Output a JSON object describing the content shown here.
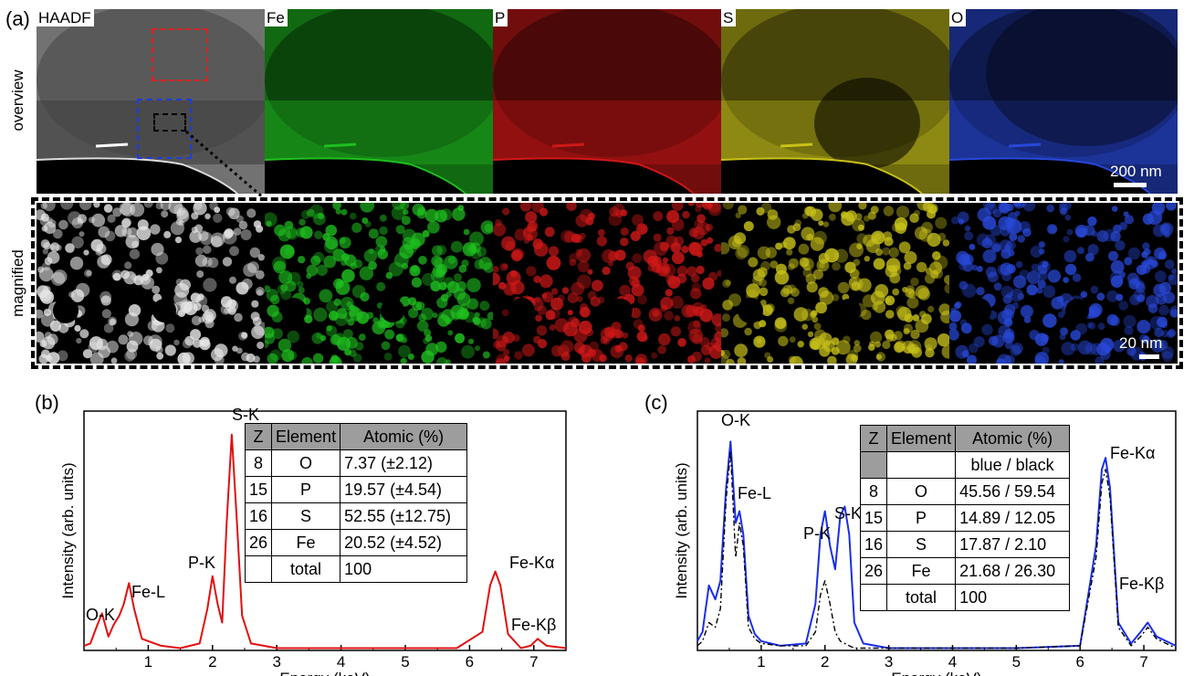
{
  "panels": {
    "a_label": "(a)",
    "b_label": "(b)",
    "c_label": "(c)"
  },
  "rows": {
    "overview": "overview",
    "magnified": "magnified"
  },
  "tiles": [
    {
      "label": "HAADF",
      "color": "#c8c8c8"
    },
    {
      "label": "Fe",
      "color": "#1fbf1f"
    },
    {
      "label": "P",
      "color": "#d01818"
    },
    {
      "label": "S",
      "color": "#c9c21a"
    },
    {
      "label": "O",
      "color": "#2848d8"
    }
  ],
  "scalebars": {
    "overview": "200 nm",
    "magnified": "20 nm"
  },
  "chart_data": [
    {
      "type": "line",
      "panel": "(b)",
      "xlabel": "Energy (keV)",
      "ylabel": "Intensity (arb. units)",
      "xlim": [
        0,
        7.5
      ],
      "x_ticks": [
        1,
        2,
        3,
        4,
        5,
        6,
        7
      ],
      "series": [
        {
          "color": "#e01010",
          "x": [
            0.0,
            0.1,
            0.18,
            0.28,
            0.38,
            0.46,
            0.55,
            0.62,
            0.7,
            0.78,
            0.9,
            1.0,
            1.2,
            1.5,
            1.8,
            1.92,
            2.0,
            2.08,
            2.15,
            2.22,
            2.3,
            2.38,
            2.46,
            2.6,
            3.0,
            4.0,
            5.0,
            5.8,
            6.2,
            6.32,
            6.4,
            6.48,
            6.6,
            6.8,
            6.95,
            7.06,
            7.2,
            7.5
          ],
          "y": [
            0.02,
            0.03,
            0.09,
            0.16,
            0.06,
            0.11,
            0.15,
            0.2,
            0.29,
            0.18,
            0.05,
            0.04,
            0.02,
            0.01,
            0.03,
            0.18,
            0.32,
            0.2,
            0.12,
            0.55,
            0.93,
            0.55,
            0.15,
            0.03,
            0.01,
            0.01,
            0.01,
            0.01,
            0.08,
            0.28,
            0.34,
            0.28,
            0.07,
            0.01,
            0.02,
            0.05,
            0.02,
            0.01
          ]
        }
      ],
      "annotations": [
        "O-K",
        "Fe-L",
        "P-K",
        "S-K",
        "Fe-Kα",
        "Fe-Kβ"
      ],
      "table": {
        "headers": [
          "Z",
          "Element",
          "Atomic (%)"
        ],
        "rows": [
          [
            "8",
            "O",
            "7.37 (±2.12)"
          ],
          [
            "15",
            "P",
            "19.57 (±4.54)"
          ],
          [
            "16",
            "S",
            "52.55 (±12.75)"
          ],
          [
            "26",
            "Fe",
            "20.52 (±4.52)"
          ],
          [
            "",
            "total",
            "100"
          ]
        ]
      }
    },
    {
      "type": "line",
      "panel": "(c)",
      "xlabel": "Energy (keV)",
      "ylabel": "Intensity (arb. units)",
      "xlim": [
        0,
        7.5
      ],
      "x_ticks": [
        1,
        2,
        3,
        4,
        5,
        6,
        7
      ],
      "series": [
        {
          "color": "#1a2ee8",
          "style": "solid",
          "x": [
            0.0,
            0.08,
            0.18,
            0.28,
            0.36,
            0.45,
            0.52,
            0.6,
            0.66,
            0.72,
            0.8,
            0.9,
            1.0,
            1.3,
            1.7,
            1.85,
            1.93,
            2.0,
            2.08,
            2.16,
            2.24,
            2.31,
            2.38,
            2.46,
            2.6,
            3.0,
            4.0,
            5.0,
            6.0,
            6.25,
            6.34,
            6.4,
            6.47,
            6.6,
            6.8,
            6.95,
            7.06,
            7.2,
            7.5
          ],
          "y": [
            0.04,
            0.08,
            0.28,
            0.22,
            0.3,
            0.7,
            0.9,
            0.55,
            0.6,
            0.5,
            0.15,
            0.07,
            0.04,
            0.02,
            0.03,
            0.2,
            0.5,
            0.6,
            0.45,
            0.35,
            0.58,
            0.62,
            0.5,
            0.12,
            0.03,
            0.01,
            0.01,
            0.01,
            0.02,
            0.45,
            0.78,
            0.83,
            0.7,
            0.12,
            0.03,
            0.08,
            0.12,
            0.06,
            0.02
          ]
        },
        {
          "color": "#000000",
          "style": "dash-dot",
          "x": [
            0.0,
            0.08,
            0.18,
            0.28,
            0.36,
            0.45,
            0.52,
            0.6,
            0.66,
            0.72,
            0.8,
            0.9,
            1.0,
            1.3,
            1.7,
            1.85,
            1.93,
            2.0,
            2.08,
            2.16,
            2.24,
            2.31,
            2.38,
            2.46,
            2.6,
            3.0,
            4.0,
            5.0,
            6.0,
            6.25,
            6.34,
            6.4,
            6.47,
            6.6,
            6.8,
            6.95,
            7.06,
            7.2,
            7.5
          ],
          "y": [
            0.02,
            0.04,
            0.12,
            0.1,
            0.18,
            0.65,
            0.86,
            0.4,
            0.55,
            0.45,
            0.1,
            0.05,
            0.03,
            0.02,
            0.02,
            0.08,
            0.24,
            0.3,
            0.2,
            0.08,
            0.04,
            0.03,
            0.02,
            0.01,
            0.01,
            0.01,
            0.01,
            0.01,
            0.02,
            0.4,
            0.72,
            0.78,
            0.66,
            0.1,
            0.02,
            0.06,
            0.1,
            0.05,
            0.01
          ]
        }
      ],
      "annotations": [
        "O-K",
        "Fe-L",
        "P-K",
        "S-K",
        "Fe-Kα",
        "Fe-Kβ"
      ],
      "table": {
        "headers": [
          "Z",
          "Element",
          "Atomic (%)"
        ],
        "subheader": "blue / black",
        "rows": [
          [
            "8",
            "O",
            "45.56 / 59.54"
          ],
          [
            "15",
            "P",
            "14.89 / 12.05"
          ],
          [
            "16",
            "S",
            "17.87 / 2.10"
          ],
          [
            "26",
            "Fe",
            "21.68 / 26.30"
          ],
          [
            "",
            "total",
            "100"
          ]
        ]
      }
    }
  ]
}
